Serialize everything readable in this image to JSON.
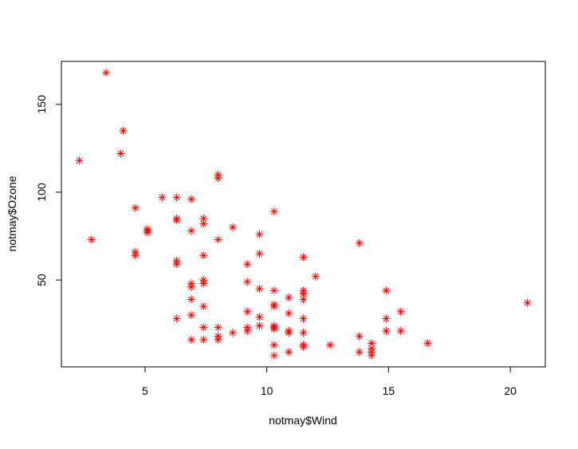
{
  "chart_data": {
    "type": "scatter",
    "x_label": "notmay$Wind",
    "y_label": "notmay$Ozone",
    "x": [
      3.4,
      4.1,
      4.0,
      2.3,
      2.8,
      4.6,
      4.6,
      4.6,
      5.1,
      5.1,
      5.1,
      5.7,
      6.3,
      6.9,
      6.3,
      6.3,
      7.4,
      7.4,
      6.9,
      8.0,
      8.0,
      8.6,
      8.0,
      10.3,
      9.7,
      13.8,
      11.5,
      7.4,
      6.3,
      6.3,
      9.7,
      9.2,
      12.0,
      7.4,
      7.4,
      6.9,
      6.9,
      9.2,
      9.7,
      10.3,
      11.5,
      11.5,
      14.9,
      6.9,
      10.9,
      11.5,
      20.7,
      10.3,
      10.3,
      7.4,
      15.5,
      9.2,
      10.9,
      6.3,
      6.9,
      9.7,
      11.5,
      14.9,
      8.0,
      7.4,
      9.2,
      9.2,
      9.7,
      10.3,
      10.3,
      10.3,
      10.9,
      10.9,
      11.5,
      8.6,
      14.9,
      15.5,
      8.0,
      8.0,
      13.8,
      6.9,
      7.4,
      16.6,
      11.5,
      11.5,
      10.3,
      14.3,
      12.6,
      14.3,
      14.3,
      14.3,
      13.8,
      10.9,
      10.3
    ],
    "values": [
      168,
      135,
      122,
      118,
      73,
      91,
      66,
      64,
      79,
      78,
      77,
      97,
      97,
      96,
      85,
      84,
      85,
      82,
      78,
      110,
      108,
      80,
      73,
      89,
      76,
      71,
      63,
      64,
      61,
      59,
      65,
      59,
      52,
      50,
      48,
      48,
      46,
      49,
      45,
      44,
      44,
      42,
      44,
      39,
      40,
      39,
      37,
      36,
      35,
      35,
      32,
      32,
      31,
      28,
      30,
      29,
      28,
      28,
      23,
      23,
      23,
      21,
      24,
      24,
      23,
      22,
      21,
      20,
      20,
      20,
      21,
      21,
      18,
      16,
      18,
      16,
      16,
      14,
      13,
      12,
      13,
      14,
      13,
      11,
      9,
      7,
      9,
      9,
      7
    ],
    "color": "#ff0000",
    "xlim": [
      1.564,
      21.436
    ],
    "ylim": [
      0.56,
      174.44
    ],
    "xticks": [
      5,
      10,
      15,
      20
    ],
    "yticks": [
      50,
      100,
      150
    ]
  }
}
